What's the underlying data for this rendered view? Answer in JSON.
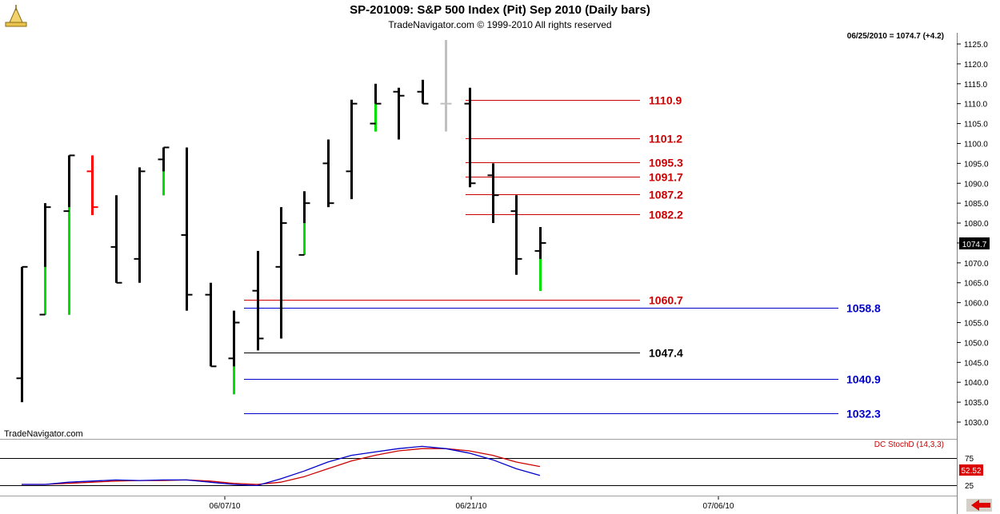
{
  "header": {
    "title": "SP-201009:  S&P 500 Index (Pit) Sep 2010  (Daily bars)",
    "subtitle": "TradeNavigator.com © 1999-2010 All rights reserved"
  },
  "watermark": "TradeNavigator.com",
  "last_quote": "06/25/2010 = 1074.7 (+4.2)",
  "price_tag": "1074.7",
  "indicator": {
    "name": "DC StochD (14,3,3)",
    "level_label": "75",
    "value_label": "52.52",
    "lower_label": "25"
  },
  "colors": {
    "up_bar": "#00e000",
    "down_bar": "#ff0000",
    "bar": "#000000",
    "pending_bar": "#c0c0c0",
    "resistance": "#cc0000",
    "support": "#0000cc",
    "stoch_k": "#0000cc",
    "stoch_d": "#cc0000"
  },
  "chart_data": {
    "type": "ohlc",
    "ylim": [
      1025.0,
      1127.5
    ],
    "y_ticks": [
      "1030.0",
      "1035.0",
      "1040.0",
      "1045.0",
      "1050.0",
      "1055.0",
      "1060.0",
      "1065.0",
      "1070.0",
      "1075.0",
      "1080.0",
      "1085.0",
      "1090.0",
      "1095.0",
      "1100.0",
      "1105.0",
      "1110.0",
      "1115.0",
      "1120.0",
      "1125.0"
    ],
    "x_tick_labels": [
      "06/07/10",
      "06/21/10",
      "07/06/10"
    ],
    "bars": [
      {
        "o": 1041,
        "h": 1069,
        "l": 1035,
        "c": 1069,
        "color": "black"
      },
      {
        "o": 1057,
        "h": 1085,
        "l": 1057,
        "c": 1084,
        "color": "black"
      },
      {
        "o": 1083,
        "h": 1097,
        "l": 1057,
        "c": 1097,
        "color": "black"
      },
      {
        "o": 1093,
        "h": 1097,
        "l": 1082,
        "c": 1084,
        "color": "red"
      },
      {
        "o": 1074,
        "h": 1087,
        "l": 1065,
        "c": 1065,
        "color": "black"
      },
      {
        "o": 1071,
        "h": 1094,
        "l": 1065,
        "c": 1093,
        "color": "black"
      },
      {
        "o": 1096,
        "h": 1099,
        "l": 1087,
        "c": 1099,
        "color": "black"
      },
      {
        "o": 1077,
        "h": 1099,
        "l": 1058,
        "c": 1062,
        "color": "black"
      },
      {
        "o": 1062,
        "h": 1065,
        "l": 1044,
        "c": 1044,
        "color": "black"
      },
      {
        "o": 1046,
        "h": 1058,
        "l": 1037,
        "c": 1055,
        "color": "black"
      },
      {
        "o": 1063,
        "h": 1073,
        "l": 1048,
        "c": 1051,
        "color": "black"
      },
      {
        "o": 1069,
        "h": 1084,
        "l": 1051,
        "c": 1080,
        "color": "black"
      },
      {
        "o": 1072,
        "h": 1088,
        "l": 1072,
        "c": 1085,
        "color": "black"
      },
      {
        "o": 1095,
        "h": 1101,
        "l": 1084,
        "c": 1085,
        "color": "black"
      },
      {
        "o": 1093,
        "h": 1111,
        "l": 1086,
        "c": 1110,
        "color": "black"
      },
      {
        "o": 1105,
        "h": 1115,
        "l": 1103,
        "c": 1110,
        "color": "black"
      },
      {
        "o": 1113,
        "h": 1114,
        "l": 1101,
        "c": 1112,
        "color": "black"
      },
      {
        "o": 1113,
        "h": 1116,
        "l": 1110,
        "c": 1110,
        "color": "black"
      },
      {
        "o": 1110,
        "h": 1126,
        "l": 1103,
        "c": 1110,
        "color": "gray"
      },
      {
        "o": 1110,
        "h": 1114,
        "l": 1089,
        "c": 1090,
        "color": "black"
      },
      {
        "o": 1092,
        "h": 1095,
        "l": 1080,
        "c": 1087,
        "color": "black"
      },
      {
        "o": 1083,
        "h": 1087,
        "l": 1067,
        "c": 1071,
        "color": "black"
      },
      {
        "o": 1073,
        "h": 1079,
        "l": 1063,
        "c": 1075,
        "color": "black"
      }
    ],
    "levels": [
      {
        "value": 1110.9,
        "label": "1110.9",
        "kind": "resistance"
      },
      {
        "value": 1101.2,
        "label": "1101.2",
        "kind": "resistance"
      },
      {
        "value": 1095.3,
        "label": "1095.3",
        "kind": "resistance"
      },
      {
        "value": 1091.7,
        "label": "1091.7",
        "kind": "resistance"
      },
      {
        "value": 1087.2,
        "label": "1087.2",
        "kind": "resistance"
      },
      {
        "value": 1082.2,
        "label": "1082.2",
        "kind": "resistance"
      },
      {
        "value": 1060.7,
        "label": "1060.7",
        "kind": "resistance"
      },
      {
        "value": 1058.8,
        "label": "1058.8",
        "kind": "support"
      },
      {
        "value": 1047.4,
        "label": "1047.4",
        "kind": "pivot"
      },
      {
        "value": 1040.9,
        "label": "1040.9",
        "kind": "support"
      },
      {
        "value": 1032.3,
        "label": "1032.3",
        "kind": "support"
      }
    ],
    "stoch_ylim": [
      0,
      100
    ],
    "stoch_k": [
      20,
      20,
      24,
      26,
      28,
      27,
      28,
      28,
      24,
      20,
      18,
      30,
      44,
      60,
      72,
      78,
      84,
      88,
      84,
      76,
      64,
      48,
      36
    ],
    "stoch_d": [
      20,
      20,
      22,
      24,
      26,
      27,
      27,
      28,
      26,
      22,
      20,
      24,
      34,
      48,
      62,
      72,
      80,
      84,
      84,
      80,
      72,
      60,
      52
    ]
  }
}
